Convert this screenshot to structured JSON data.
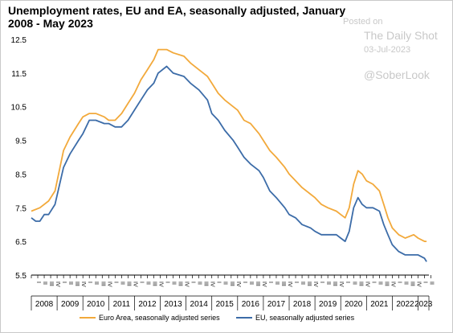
{
  "watermark": {
    "posted_on": "Posted on",
    "source": "The Daily Shot",
    "date": "03-Jul-2023",
    "handle": "@SoberLook"
  },
  "chart_data": {
    "type": "line",
    "title": "Unemployment rates, EU and EA, seasonally adjusted, January 2008 - May 2023",
    "xlabel": "",
    "ylabel": "",
    "ylim": [
      5.5,
      12.5
    ],
    "yticks": [
      "12.5",
      "11.5",
      "10.5",
      "9.5",
      "8.5",
      "7.5",
      "6.5",
      "5.5"
    ],
    "years": [
      "2008",
      "2009",
      "2010",
      "2011",
      "2012",
      "2013",
      "2014",
      "2015",
      "2016",
      "2017",
      "2018",
      "2019",
      "2020",
      "2021",
      "2022",
      "2023"
    ],
    "quarter_labels": [
      "I",
      "II",
      "III",
      "IV"
    ],
    "grid": false,
    "legend_position": "bottom",
    "series": [
      {
        "name": "Euro Area, seasonally adjusted series",
        "color": "#F2A93B",
        "points": [
          [
            2008.0,
            7.4
          ],
          [
            2008.33,
            7.5
          ],
          [
            2008.67,
            7.7
          ],
          [
            2008.92,
            8.0
          ],
          [
            2009.25,
            9.2
          ],
          [
            2009.5,
            9.6
          ],
          [
            2009.83,
            10.0
          ],
          [
            2010.0,
            10.2
          ],
          [
            2010.25,
            10.3
          ],
          [
            2010.5,
            10.3
          ],
          [
            2010.83,
            10.2
          ],
          [
            2011.0,
            10.1
          ],
          [
            2011.25,
            10.1
          ],
          [
            2011.5,
            10.3
          ],
          [
            2011.75,
            10.6
          ],
          [
            2012.0,
            10.9
          ],
          [
            2012.25,
            11.3
          ],
          [
            2012.5,
            11.6
          ],
          [
            2012.75,
            11.9
          ],
          [
            2012.92,
            12.2
          ],
          [
            2013.25,
            12.2
          ],
          [
            2013.5,
            12.1
          ],
          [
            2013.92,
            12.0
          ],
          [
            2014.17,
            11.8
          ],
          [
            2014.5,
            11.6
          ],
          [
            2014.83,
            11.4
          ],
          [
            2015.0,
            11.2
          ],
          [
            2015.25,
            10.9
          ],
          [
            2015.5,
            10.7
          ],
          [
            2015.83,
            10.5
          ],
          [
            2016.0,
            10.4
          ],
          [
            2016.25,
            10.1
          ],
          [
            2016.5,
            10.0
          ],
          [
            2016.83,
            9.7
          ],
          [
            2017.0,
            9.5
          ],
          [
            2017.25,
            9.2
          ],
          [
            2017.5,
            9.0
          ],
          [
            2017.83,
            8.7
          ],
          [
            2018.0,
            8.5
          ],
          [
            2018.25,
            8.3
          ],
          [
            2018.5,
            8.1
          ],
          [
            2018.83,
            7.9
          ],
          [
            2019.0,
            7.8
          ],
          [
            2019.25,
            7.6
          ],
          [
            2019.5,
            7.5
          ],
          [
            2019.83,
            7.4
          ],
          [
            2020.0,
            7.3
          ],
          [
            2020.17,
            7.2
          ],
          [
            2020.33,
            7.5
          ],
          [
            2020.5,
            8.2
          ],
          [
            2020.67,
            8.6
          ],
          [
            2020.83,
            8.5
          ],
          [
            2021.0,
            8.3
          ],
          [
            2021.25,
            8.2
          ],
          [
            2021.5,
            8.0
          ],
          [
            2021.67,
            7.6
          ],
          [
            2021.83,
            7.2
          ],
          [
            2022.0,
            6.9
          ],
          [
            2022.25,
            6.7
          ],
          [
            2022.5,
            6.6
          ],
          [
            2022.83,
            6.7
          ],
          [
            2023.0,
            6.6
          ],
          [
            2023.25,
            6.5
          ],
          [
            2023.33,
            6.5
          ]
        ]
      },
      {
        "name": "EU, seasonally adjusted series",
        "color": "#3C6CA8",
        "points": [
          [
            2008.0,
            7.2
          ],
          [
            2008.17,
            7.1
          ],
          [
            2008.33,
            7.1
          ],
          [
            2008.5,
            7.3
          ],
          [
            2008.67,
            7.3
          ],
          [
            2008.92,
            7.6
          ],
          [
            2009.25,
            8.7
          ],
          [
            2009.5,
            9.1
          ],
          [
            2009.83,
            9.5
          ],
          [
            2010.0,
            9.7
          ],
          [
            2010.25,
            10.1
          ],
          [
            2010.5,
            10.1
          ],
          [
            2010.83,
            10.0
          ],
          [
            2011.0,
            10.0
          ],
          [
            2011.25,
            9.9
          ],
          [
            2011.5,
            9.9
          ],
          [
            2011.75,
            10.1
          ],
          [
            2012.0,
            10.4
          ],
          [
            2012.25,
            10.7
          ],
          [
            2012.5,
            11.0
          ],
          [
            2012.75,
            11.2
          ],
          [
            2012.92,
            11.5
          ],
          [
            2013.25,
            11.7
          ],
          [
            2013.5,
            11.5
          ],
          [
            2013.92,
            11.4
          ],
          [
            2014.17,
            11.2
          ],
          [
            2014.5,
            11.0
          ],
          [
            2014.83,
            10.7
          ],
          [
            2015.0,
            10.3
          ],
          [
            2015.25,
            10.1
          ],
          [
            2015.5,
            9.8
          ],
          [
            2015.83,
            9.5
          ],
          [
            2016.0,
            9.3
          ],
          [
            2016.25,
            9.0
          ],
          [
            2016.5,
            8.8
          ],
          [
            2016.83,
            8.6
          ],
          [
            2017.0,
            8.4
          ],
          [
            2017.25,
            8.0
          ],
          [
            2017.5,
            7.8
          ],
          [
            2017.83,
            7.5
          ],
          [
            2018.0,
            7.3
          ],
          [
            2018.25,
            7.2
          ],
          [
            2018.5,
            7.0
          ],
          [
            2018.83,
            6.9
          ],
          [
            2019.0,
            6.8
          ],
          [
            2019.25,
            6.7
          ],
          [
            2019.5,
            6.7
          ],
          [
            2019.83,
            6.7
          ],
          [
            2020.0,
            6.6
          ],
          [
            2020.17,
            6.5
          ],
          [
            2020.33,
            6.8
          ],
          [
            2020.5,
            7.5
          ],
          [
            2020.67,
            7.8
          ],
          [
            2020.83,
            7.6
          ],
          [
            2021.0,
            7.5
          ],
          [
            2021.25,
            7.5
          ],
          [
            2021.5,
            7.4
          ],
          [
            2021.67,
            7.0
          ],
          [
            2021.83,
            6.7
          ],
          [
            2022.0,
            6.4
          ],
          [
            2022.25,
            6.2
          ],
          [
            2022.5,
            6.1
          ],
          [
            2022.83,
            6.1
          ],
          [
            2023.0,
            6.1
          ],
          [
            2023.25,
            6.0
          ],
          [
            2023.33,
            5.9
          ]
        ]
      }
    ]
  }
}
